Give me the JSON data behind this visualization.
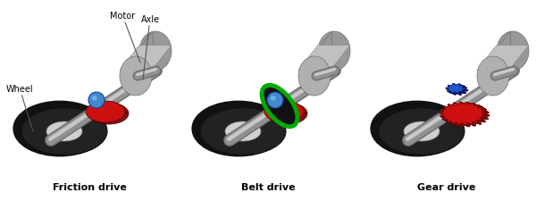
{
  "labels": {
    "friction": "Friction drive",
    "belt": "Belt drive",
    "gear": "Gear drive",
    "motor": "Motor",
    "axle": "Axle",
    "wheel": "Wheel"
  },
  "colors": {
    "background": "#ffffff",
    "wheel_outer": "#222222",
    "wheel_rim": "#383838",
    "wheel_inner": "#d0d0d0",
    "wheel_inner_dark": "#a0a0a0",
    "axle_light": "#c8c8c8",
    "axle_dark": "#909090",
    "axle_shadow": "#707070",
    "motor_top": "#c0c0c0",
    "motor_side": "#989898",
    "motor_front": "#b0b0b0",
    "motor_edge": "#707070",
    "red_disk_face": "#cc1010",
    "red_disk_side": "#881010",
    "red_disk_edge": "#440000",
    "blue_ball": "#4488cc",
    "blue_ball_dark": "#1144aa",
    "belt_outer": "#00aa00",
    "belt_inner": "#005500",
    "belt_fill": "#111111",
    "gear_red_face": "#cc1010",
    "gear_red_side": "#881010",
    "gear_blue_face": "#2255cc",
    "gear_blue_side": "#112288",
    "text_color": "#000000",
    "arrow_color": "#555555"
  }
}
